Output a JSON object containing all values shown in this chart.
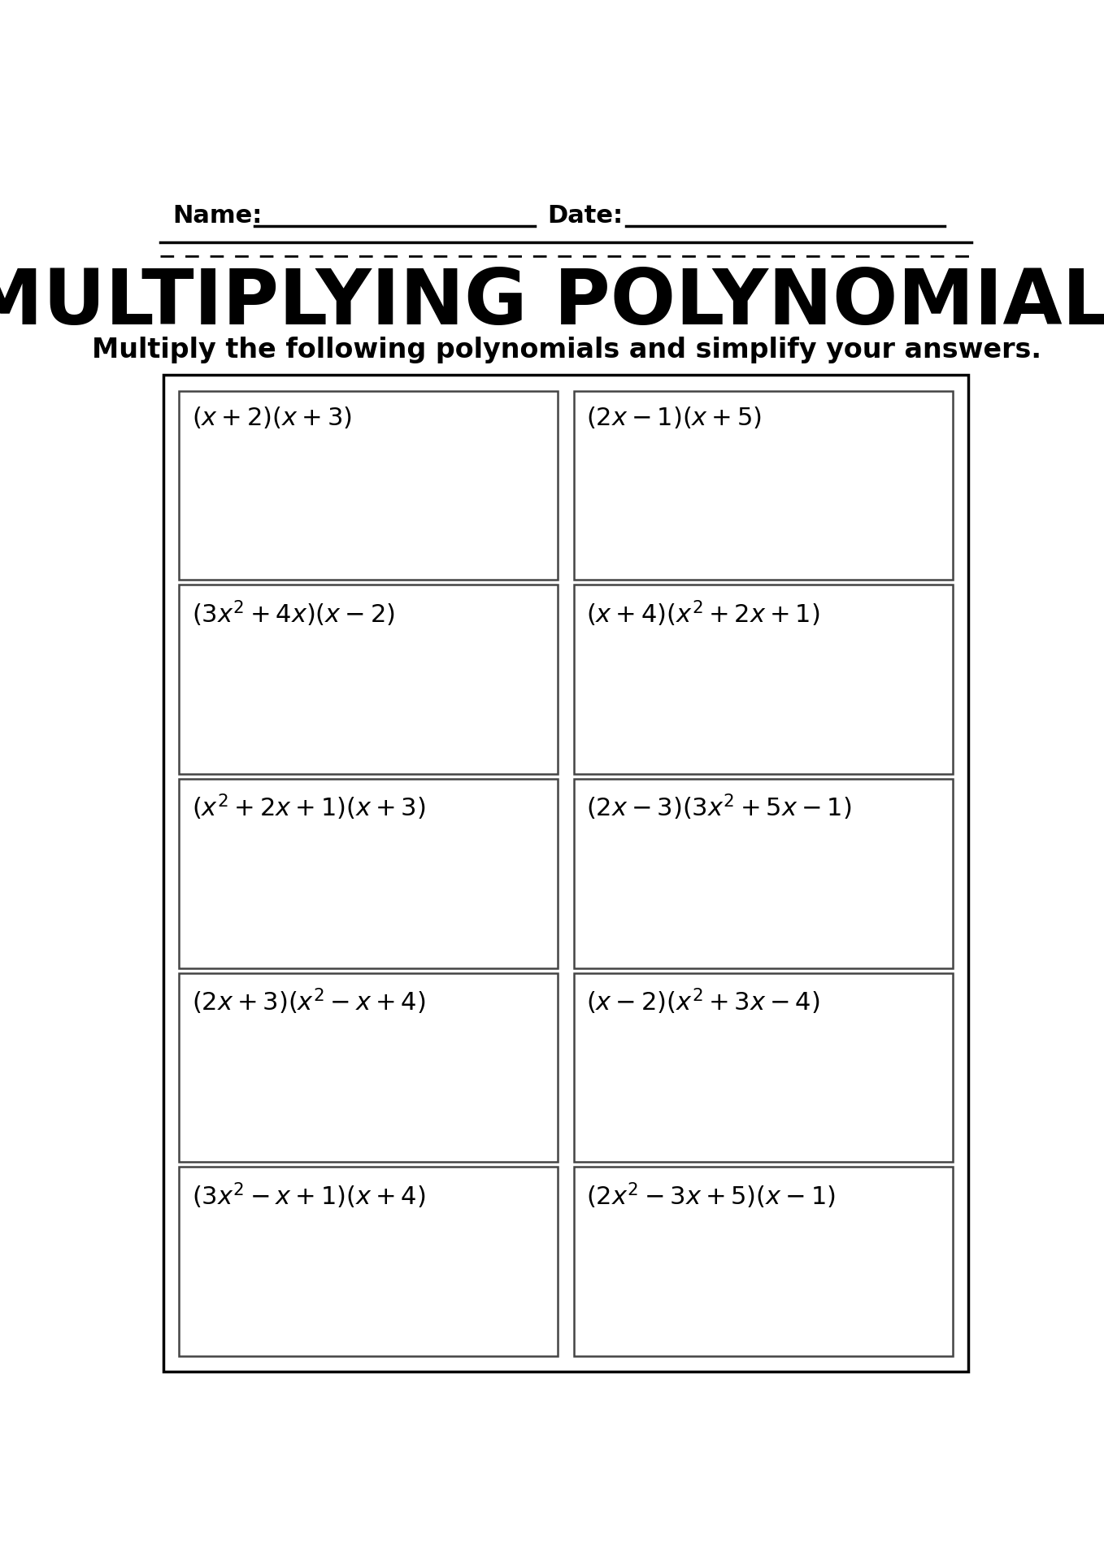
{
  "title": "MULTIPLYING POLYNOMIALS",
  "subtitle": "Multiply the following polynomials and simplify your answers.",
  "name_label": "Name:",
  "date_label": "Date:",
  "bg_color": "#ffffff",
  "problems": [
    [
      "$(x + 2)(x + 3)$",
      "$(2x - 1)(x + 5)$"
    ],
    [
      "$(3x^2+ 4x)(x - 2)$",
      "$(x + 4)(x^2+ 2x +1)$"
    ],
    [
      "$(x^2+ 2x + 1)(x + 3)$",
      "$(2x - 3)(3x^2+5x - 1)$"
    ],
    [
      "$(2x + 3)(x^2- x + 4)$",
      "$(x - 2)(x^2+3x - 4)$"
    ],
    [
      "$(3x^2- x + 1)(x + 4)$",
      "$(2x^2- 3x + 5)(x - 1)$"
    ]
  ]
}
